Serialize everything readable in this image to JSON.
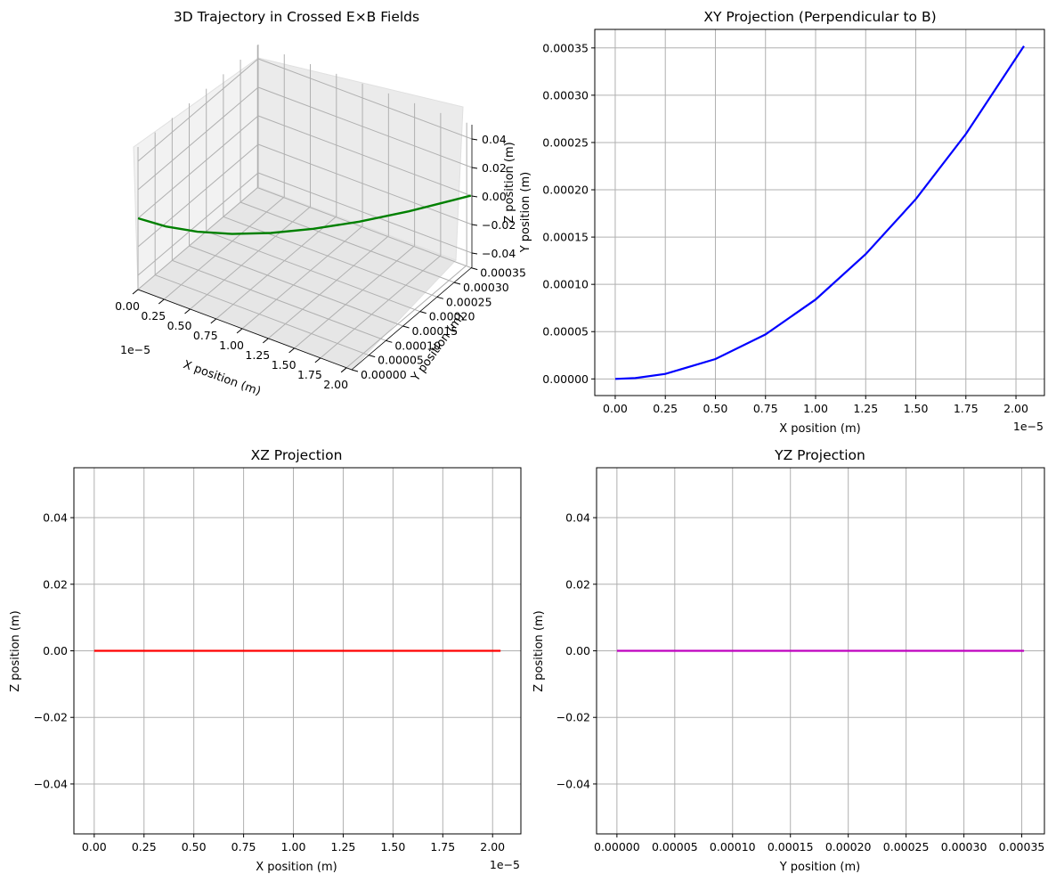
{
  "chart_data": [
    {
      "type": "line3d",
      "title": "3D Trajectory in Crossed E×B Fields",
      "xlabel": "X position (m)",
      "ylabel": "Y position (m)",
      "zlabel": "Z position (m)",
      "x_offset_label": "1e−5",
      "xlim": [
        0.0,
        2.05
      ],
      "ylim": [
        0.0,
        0.000352
      ],
      "zlim": [
        -0.05,
        0.05
      ],
      "x_ticks": [
        "0.00",
        "0.25",
        "0.50",
        "0.75",
        "1.00",
        "1.25",
        "1.50",
        "1.75",
        "2.00"
      ],
      "y_ticks": [
        "0.00000",
        "0.00005",
        "0.00010",
        "0.00015",
        "0.00020",
        "0.00025",
        "0.00030",
        "0.00035"
      ],
      "z_ticks": [
        "−0.04",
        "−0.02",
        "0.00",
        "0.02",
        "0.04"
      ],
      "grid": true,
      "series": [
        {
          "color": "#008000",
          "x": [
            0.0,
            0.25,
            0.5,
            0.75,
            1.0,
            1.25,
            1.5,
            1.75,
            2.04
          ],
          "y": [
            0.0,
            5.3e-06,
            2.1e-05,
            4.7e-05,
            8.4e-05,
            0.000132,
            0.00019,
            0.000259,
            0.000352
          ],
          "z": [
            0,
            0,
            0,
            0,
            0,
            0,
            0,
            0,
            0
          ]
        }
      ]
    },
    {
      "type": "line",
      "title": "XY Projection (Perpendicular to B)",
      "xlabel": "X position (m)",
      "ylabel": "Y position (m)",
      "x_offset_label": "1e−5",
      "xlim": [
        -0.102,
        2.142
      ],
      "ylim": [
        -1.76e-05,
        0.0003696
      ],
      "x_ticks": [
        "0.00",
        "0.25",
        "0.50",
        "0.75",
        "1.00",
        "1.25",
        "1.50",
        "1.75",
        "2.00"
      ],
      "x_tick_values": [
        0,
        0.25,
        0.5,
        0.75,
        1.0,
        1.25,
        1.5,
        1.75,
        2.0
      ],
      "y_ticks": [
        "0.00000",
        "0.00005",
        "0.00010",
        "0.00015",
        "0.00020",
        "0.00025",
        "0.00030",
        "0.00035"
      ],
      "y_tick_values": [
        0,
        5e-05,
        0.0001,
        0.00015,
        0.0002,
        0.00025,
        0.0003,
        0.00035
      ],
      "grid": true,
      "series": [
        {
          "color": "#0000ff",
          "x": [
            0.0,
            0.1,
            0.25,
            0.5,
            0.75,
            1.0,
            1.25,
            1.5,
            1.75,
            2.04
          ],
          "y": [
            0.0,
            8.5e-07,
            5.3e-06,
            2.1e-05,
            4.7e-05,
            8.4e-05,
            0.000132,
            0.00019,
            0.000259,
            0.000352
          ]
        }
      ]
    },
    {
      "type": "line",
      "title": "XZ Projection",
      "xlabel": "X position (m)",
      "ylabel": "Z position (m)",
      "x_offset_label": "1e−5",
      "xlim": [
        -0.102,
        2.142
      ],
      "ylim": [
        -0.055,
        0.055
      ],
      "x_ticks": [
        "0.00",
        "0.25",
        "0.50",
        "0.75",
        "1.00",
        "1.25",
        "1.50",
        "1.75",
        "2.00"
      ],
      "x_tick_values": [
        0,
        0.25,
        0.5,
        0.75,
        1.0,
        1.25,
        1.5,
        1.75,
        2.0
      ],
      "y_ticks": [
        "−0.04",
        "−0.02",
        "0.00",
        "0.02",
        "0.04"
      ],
      "y_tick_values": [
        -0.04,
        -0.02,
        0,
        0.02,
        0.04
      ],
      "grid": true,
      "series": [
        {
          "color": "#ff0000",
          "x": [
            0.0,
            2.04
          ],
          "y": [
            0,
            0
          ]
        }
      ]
    },
    {
      "type": "line",
      "title": "YZ Projection",
      "xlabel": "Y position (m)",
      "ylabel": "Z position (m)",
      "x_offset_label": "",
      "xlim": [
        -1.76e-05,
        0.0003696
      ],
      "ylim": [
        -0.055,
        0.055
      ],
      "x_ticks": [
        "0.00000",
        "0.00005",
        "0.00010",
        "0.00015",
        "0.00020",
        "0.00025",
        "0.00030",
        "0.00035"
      ],
      "x_tick_values": [
        0,
        5e-05,
        0.0001,
        0.00015,
        0.0002,
        0.00025,
        0.0003,
        0.00035
      ],
      "y_ticks": [
        "−0.04",
        "−0.02",
        "0.00",
        "0.02",
        "0.04"
      ],
      "y_tick_values": [
        -0.04,
        -0.02,
        0,
        0.02,
        0.04
      ],
      "grid": true,
      "series": [
        {
          "color": "#bf00bf",
          "x": [
            0.0,
            0.000352
          ],
          "y": [
            0,
            0
          ]
        }
      ]
    }
  ]
}
